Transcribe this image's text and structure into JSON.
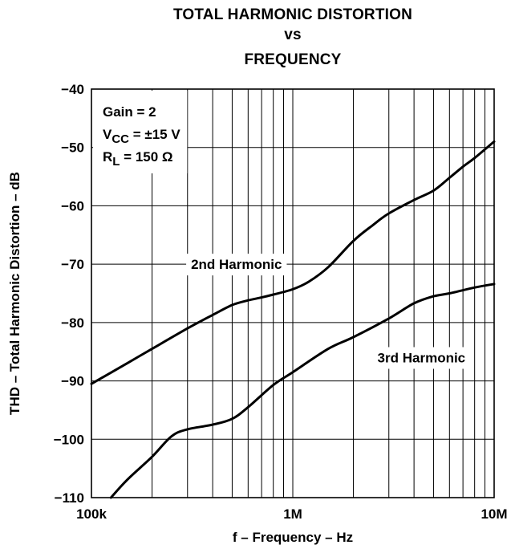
{
  "chart_data": {
    "type": "line",
    "title": [
      "TOTAL HARMONIC DISTORTION",
      "vs",
      "FREQUENCY"
    ],
    "xlabel": "f – Frequency – Hz",
    "ylabel": "THD – Total Harmonic Distortion – dB",
    "x_scale": "log",
    "xlim": [
      100000,
      10000000
    ],
    "ylim": [
      -110,
      -40
    ],
    "x_tick_labels": [
      {
        "value": 100000,
        "label": "100k"
      },
      {
        "value": 1000000,
        "label": "1M"
      },
      {
        "value": 10000000,
        "label": "10M"
      }
    ],
    "y_tick_labels": [
      {
        "value": -40,
        "label": "−40"
      },
      {
        "value": -50,
        "label": "−50"
      },
      {
        "value": -60,
        "label": "−60"
      },
      {
        "value": -70,
        "label": "−70"
      },
      {
        "value": -80,
        "label": "−80"
      },
      {
        "value": -90,
        "label": "−90"
      },
      {
        "value": -100,
        "label": "−100"
      },
      {
        "value": -110,
        "label": "−110"
      }
    ],
    "grid": true,
    "conditions": {
      "gain": "Gain = 2",
      "vcc_main": "V",
      "vcc_sub": "CC",
      "vcc_rest": " = ±15 V",
      "rl_main": "R",
      "rl_sub": "L",
      "rl_rest": " = 150 Ω"
    },
    "series": [
      {
        "name": "2nd Harmonic",
        "x": [
          100000,
          150000,
          200000,
          300000,
          400000,
          500000,
          600000,
          700000,
          800000,
          1000000,
          1200000,
          1500000,
          2000000,
          2500000,
          3000000,
          4000000,
          5000000,
          6000000,
          7000000,
          8000000,
          10000000
        ],
        "y": [
          -90.5,
          -87.0,
          -84.5,
          -81.0,
          -78.7,
          -77.0,
          -76.2,
          -75.7,
          -75.2,
          -74.3,
          -73.0,
          -70.5,
          -66.0,
          -63.3,
          -61.3,
          -59.0,
          -57.4,
          -55.2,
          -53.3,
          -51.8,
          -49.0
        ]
      },
      {
        "name": "3rd Harmonic",
        "x": [
          125000,
          150000,
          200000,
          250000,
          300000,
          400000,
          500000,
          600000,
          800000,
          1000000,
          1500000,
          2000000,
          3000000,
          4000000,
          5000000,
          6000000,
          8000000,
          10000000
        ],
        "y": [
          -110,
          -107,
          -103,
          -99.5,
          -98.3,
          -97.5,
          -96.5,
          -94.5,
          -90.7,
          -88.5,
          -84.5,
          -82.5,
          -79.3,
          -76.7,
          -75.5,
          -75.0,
          -74.0,
          -73.4
        ]
      }
    ],
    "colors": {
      "line": "#000000",
      "grid": "#000000",
      "background": "#ffffff"
    }
  }
}
